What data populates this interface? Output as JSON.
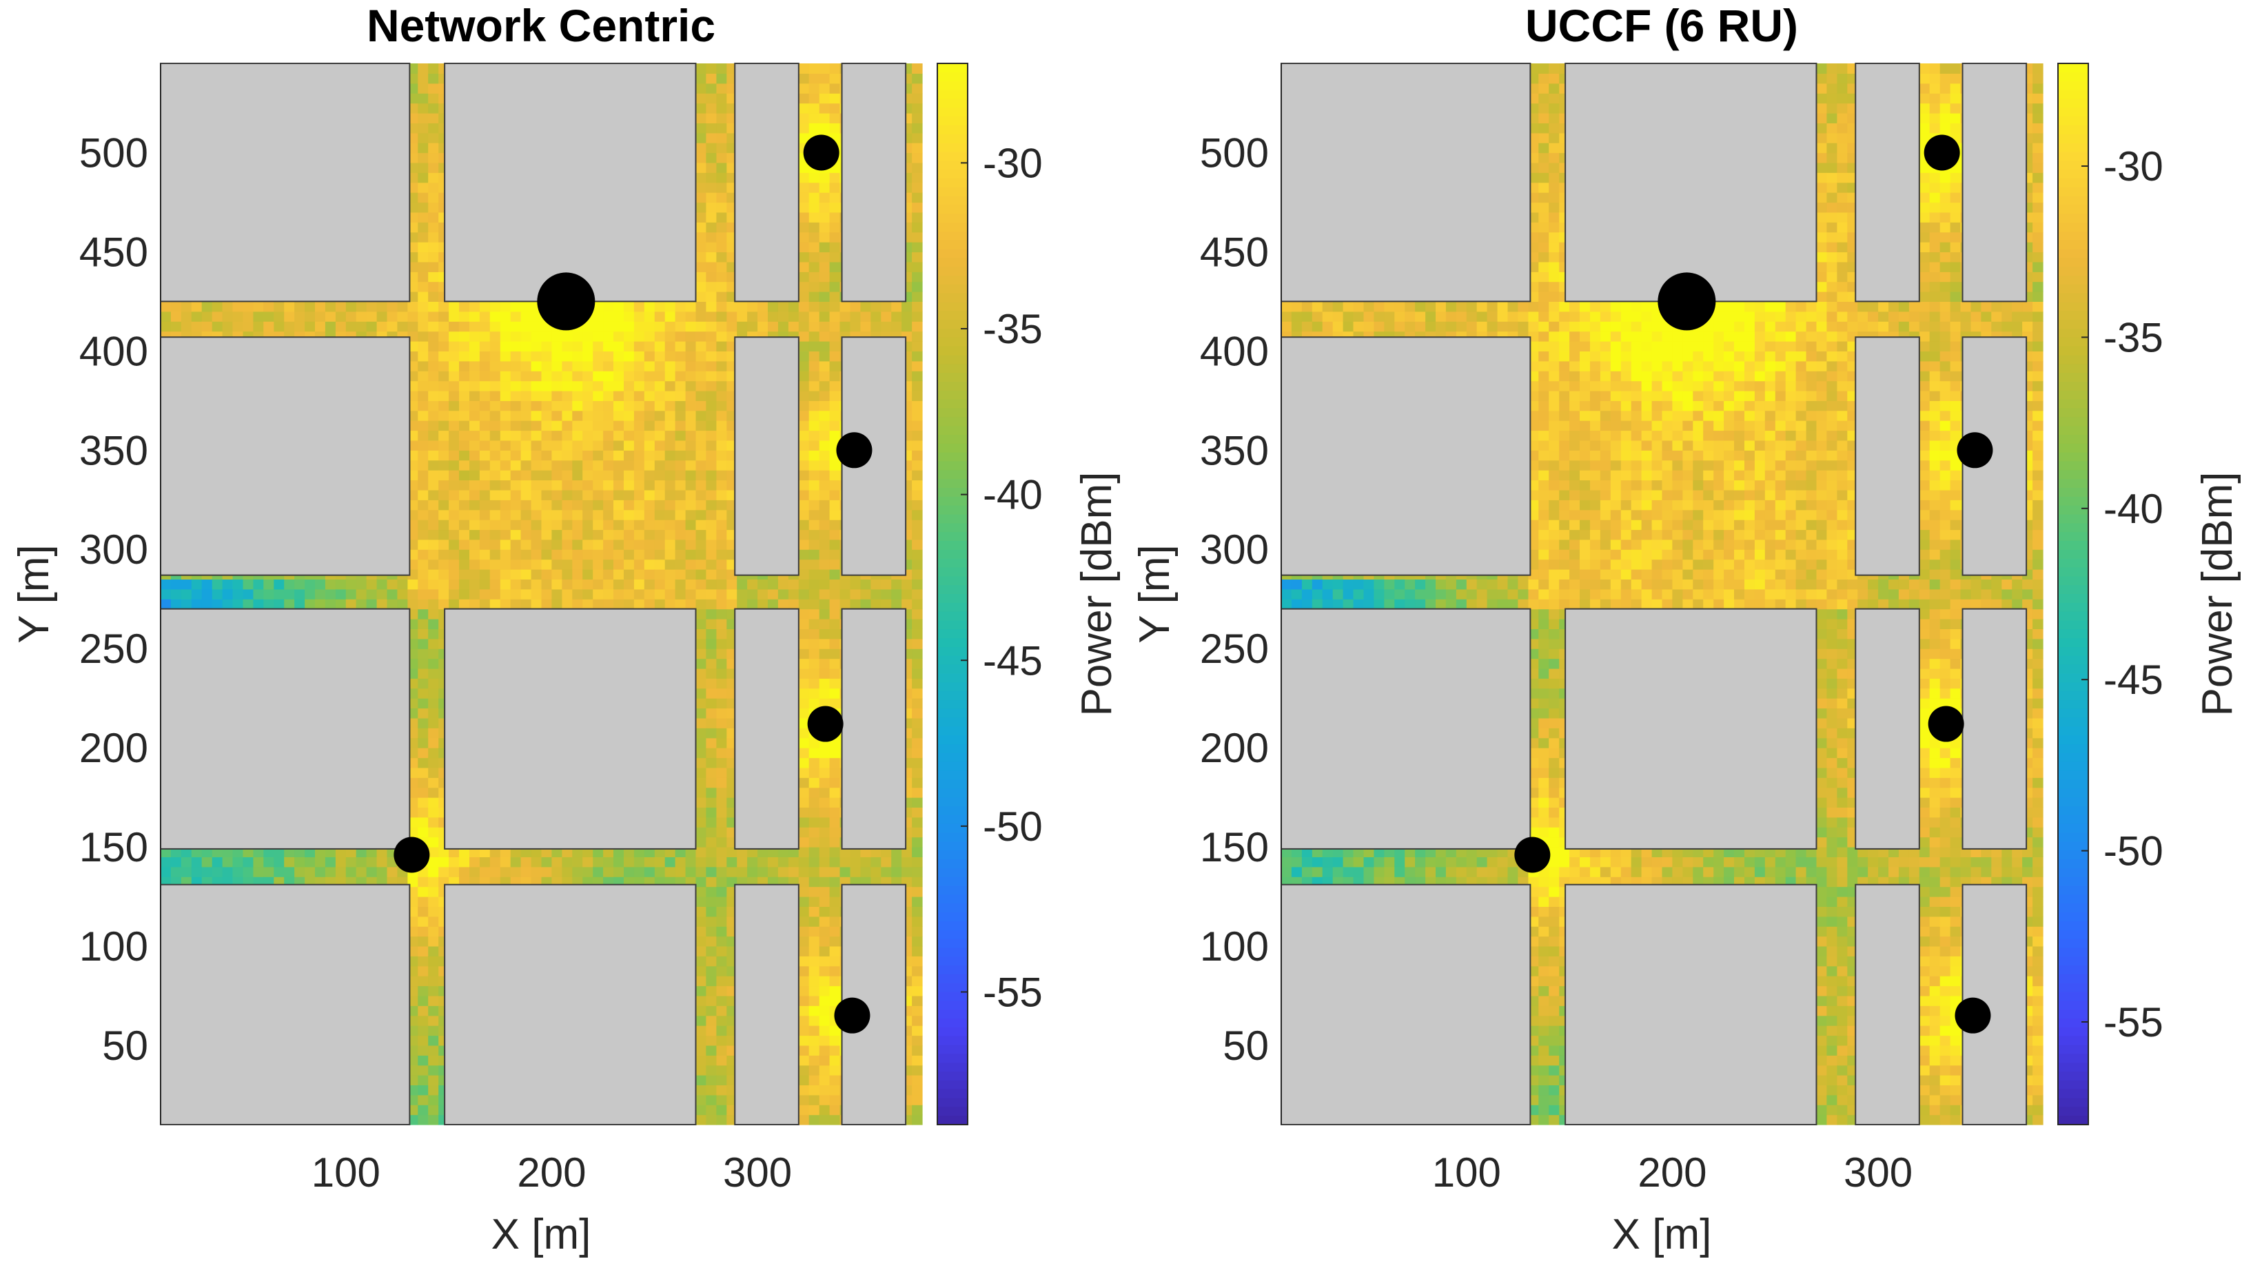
{
  "chart_data": [
    {
      "type": "heatmap",
      "title": "Network Centric",
      "xlabel": "X [m]",
      "ylabel": "Y [m]",
      "colorbar_label": "Power [dBm]",
      "xlim": [
        10,
        380
      ],
      "ylim": [
        10,
        545
      ],
      "xticks": [
        100,
        200,
        300
      ],
      "yticks": [
        50,
        100,
        150,
        200,
        250,
        300,
        350,
        400,
        450,
        500
      ],
      "clim": [
        -59,
        -27
      ],
      "cticks": [
        -30,
        -35,
        -40,
        -45,
        -50,
        -55
      ],
      "buildings": [
        {
          "x0": 10,
          "x1": 131,
          "y0": 425,
          "y1": 545
        },
        {
          "x0": 148,
          "x1": 270,
          "y0": 425,
          "y1": 545
        },
        {
          "x0": 289,
          "x1": 320,
          "y0": 425,
          "y1": 545
        },
        {
          "x0": 341,
          "x1": 372,
          "y0": 425,
          "y1": 545
        },
        {
          "x0": 10,
          "x1": 131,
          "y0": 287,
          "y1": 407
        },
        {
          "x0": 289,
          "x1": 320,
          "y0": 287,
          "y1": 407
        },
        {
          "x0": 341,
          "x1": 372,
          "y0": 287,
          "y1": 407
        },
        {
          "x0": 10,
          "x1": 131,
          "y0": 149,
          "y1": 270
        },
        {
          "x0": 148,
          "x1": 270,
          "y0": 149,
          "y1": 270
        },
        {
          "x0": 289,
          "x1": 320,
          "y0": 149,
          "y1": 270
        },
        {
          "x0": 341,
          "x1": 372,
          "y0": 149,
          "y1": 270
        },
        {
          "x0": 10,
          "x1": 131,
          "y0": 10,
          "y1": 131
        },
        {
          "x0": 148,
          "x1": 270,
          "y0": 10,
          "y1": 131
        },
        {
          "x0": 289,
          "x1": 320,
          "y0": 10,
          "y1": 131
        },
        {
          "x0": 341,
          "x1": 372,
          "y0": 10,
          "y1": 131
        }
      ],
      "radio_units": [
        {
          "x": 331,
          "y": 500,
          "size": "small"
        },
        {
          "x": 207,
          "y": 425,
          "size": "large"
        },
        {
          "x": 347,
          "y": 350,
          "size": "small"
        },
        {
          "x": 333,
          "y": 212,
          "size": "small"
        },
        {
          "x": 132,
          "y": 146,
          "size": "small"
        },
        {
          "x": 346,
          "y": 65,
          "size": "small"
        }
      ]
    },
    {
      "type": "heatmap",
      "title": "UCCF (6 RU)",
      "xlabel": "X [m]",
      "ylabel": "Y [m]",
      "colorbar_label": "Power [dBm]",
      "xlim": [
        10,
        380
      ],
      "ylim": [
        10,
        545
      ],
      "xticks": [
        100,
        200,
        300
      ],
      "yticks": [
        50,
        100,
        150,
        200,
        250,
        300,
        350,
        400,
        450,
        500
      ],
      "clim": [
        -58,
        -27
      ],
      "cticks": [
        -30,
        -35,
        -40,
        -45,
        -50,
        -55
      ],
      "buildings": [
        {
          "x0": 10,
          "x1": 131,
          "y0": 425,
          "y1": 545
        },
        {
          "x0": 148,
          "x1": 270,
          "y0": 425,
          "y1": 545
        },
        {
          "x0": 289,
          "x1": 320,
          "y0": 425,
          "y1": 545
        },
        {
          "x0": 341,
          "x1": 372,
          "y0": 425,
          "y1": 545
        },
        {
          "x0": 10,
          "x1": 131,
          "y0": 287,
          "y1": 407
        },
        {
          "x0": 289,
          "x1": 320,
          "y0": 287,
          "y1": 407
        },
        {
          "x0": 341,
          "x1": 372,
          "y0": 287,
          "y1": 407
        },
        {
          "x0": 10,
          "x1": 131,
          "y0": 149,
          "y1": 270
        },
        {
          "x0": 148,
          "x1": 270,
          "y0": 149,
          "y1": 270
        },
        {
          "x0": 289,
          "x1": 320,
          "y0": 149,
          "y1": 270
        },
        {
          "x0": 341,
          "x1": 372,
          "y0": 149,
          "y1": 270
        },
        {
          "x0": 10,
          "x1": 131,
          "y0": 10,
          "y1": 131
        },
        {
          "x0": 148,
          "x1": 270,
          "y0": 10,
          "y1": 131
        },
        {
          "x0": 289,
          "x1": 320,
          "y0": 10,
          "y1": 131
        },
        {
          "x0": 341,
          "x1": 372,
          "y0": 10,
          "y1": 131
        }
      ],
      "radio_units": [
        {
          "x": 331,
          "y": 500,
          "size": "small"
        },
        {
          "x": 207,
          "y": 425,
          "size": "large"
        },
        {
          "x": 347,
          "y": 350,
          "size": "small"
        },
        {
          "x": 333,
          "y": 212,
          "size": "small"
        },
        {
          "x": 132,
          "y": 146,
          "size": "small"
        },
        {
          "x": 346,
          "y": 65,
          "size": "small"
        }
      ]
    }
  ],
  "colors": {
    "building_fill": "#c8c8c8",
    "building_stroke": "#3c3c3c",
    "marker": "#000000",
    "colormap": [
      "#3e26a8",
      "#4743f5",
      "#2f6bfd",
      "#1e8fed",
      "#14a8d9",
      "#1fbcb1",
      "#4bc481",
      "#8fc347",
      "#c7bc31",
      "#f0b93a",
      "#fcd734",
      "#f9fb15"
    ]
  }
}
